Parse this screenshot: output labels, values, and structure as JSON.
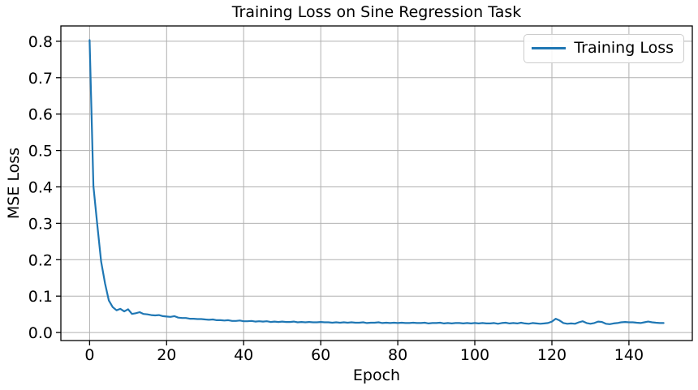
{
  "figure": {
    "background": "#ffffff"
  },
  "chart_data": {
    "type": "line",
    "title": "Training Loss on Sine Regression Task",
    "xlabel": "Epoch",
    "ylabel": "MSE Loss",
    "xlim": [
      -7.45,
      156.45
    ],
    "ylim": [
      -0.022,
      0.842
    ],
    "xticks": [
      0,
      20,
      40,
      60,
      80,
      100,
      120,
      140
    ],
    "yticks": [
      0.0,
      0.1,
      0.2,
      0.3,
      0.4,
      0.5,
      0.6,
      0.7,
      0.8
    ],
    "grid": true,
    "grid_color": "#b0b0b0",
    "spine_color": "#000000",
    "legend": {
      "position": "upper right",
      "label": "Training Loss"
    },
    "series": [
      {
        "name": "Training Loss",
        "color": "#1f77b4",
        "x_start": 0,
        "x_step": 1,
        "x_end": 149,
        "values": [
          0.803,
          0.402,
          0.295,
          0.195,
          0.135,
          0.088,
          0.07,
          0.061,
          0.065,
          0.058,
          0.064,
          0.051,
          0.053,
          0.056,
          0.051,
          0.05,
          0.048,
          0.047,
          0.048,
          0.045,
          0.044,
          0.043,
          0.045,
          0.041,
          0.04,
          0.04,
          0.038,
          0.038,
          0.037,
          0.037,
          0.036,
          0.035,
          0.036,
          0.034,
          0.034,
          0.033,
          0.034,
          0.032,
          0.032,
          0.033,
          0.031,
          0.031,
          0.032,
          0.03,
          0.031,
          0.03,
          0.031,
          0.029,
          0.03,
          0.029,
          0.03,
          0.029,
          0.029,
          0.03,
          0.028,
          0.029,
          0.028,
          0.029,
          0.028,
          0.028,
          0.029,
          0.028,
          0.028,
          0.027,
          0.028,
          0.027,
          0.028,
          0.027,
          0.028,
          0.027,
          0.027,
          0.028,
          0.026,
          0.027,
          0.027,
          0.028,
          0.026,
          0.027,
          0.026,
          0.027,
          0.026,
          0.027,
          0.026,
          0.026,
          0.027,
          0.026,
          0.026,
          0.027,
          0.025,
          0.026,
          0.026,
          0.027,
          0.025,
          0.026,
          0.025,
          0.026,
          0.026,
          0.025,
          0.026,
          0.025,
          0.026,
          0.025,
          0.026,
          0.025,
          0.025,
          0.026,
          0.024,
          0.026,
          0.027,
          0.025,
          0.026,
          0.025,
          0.027,
          0.025,
          0.024,
          0.026,
          0.025,
          0.024,
          0.025,
          0.026,
          0.03,
          0.038,
          0.033,
          0.026,
          0.024,
          0.025,
          0.024,
          0.028,
          0.031,
          0.026,
          0.024,
          0.026,
          0.03,
          0.029,
          0.024,
          0.023,
          0.025,
          0.026,
          0.028,
          0.029,
          0.028,
          0.028,
          0.027,
          0.026,
          0.028,
          0.03,
          0.028,
          0.027,
          0.026,
          0.026
        ]
      }
    ]
  }
}
